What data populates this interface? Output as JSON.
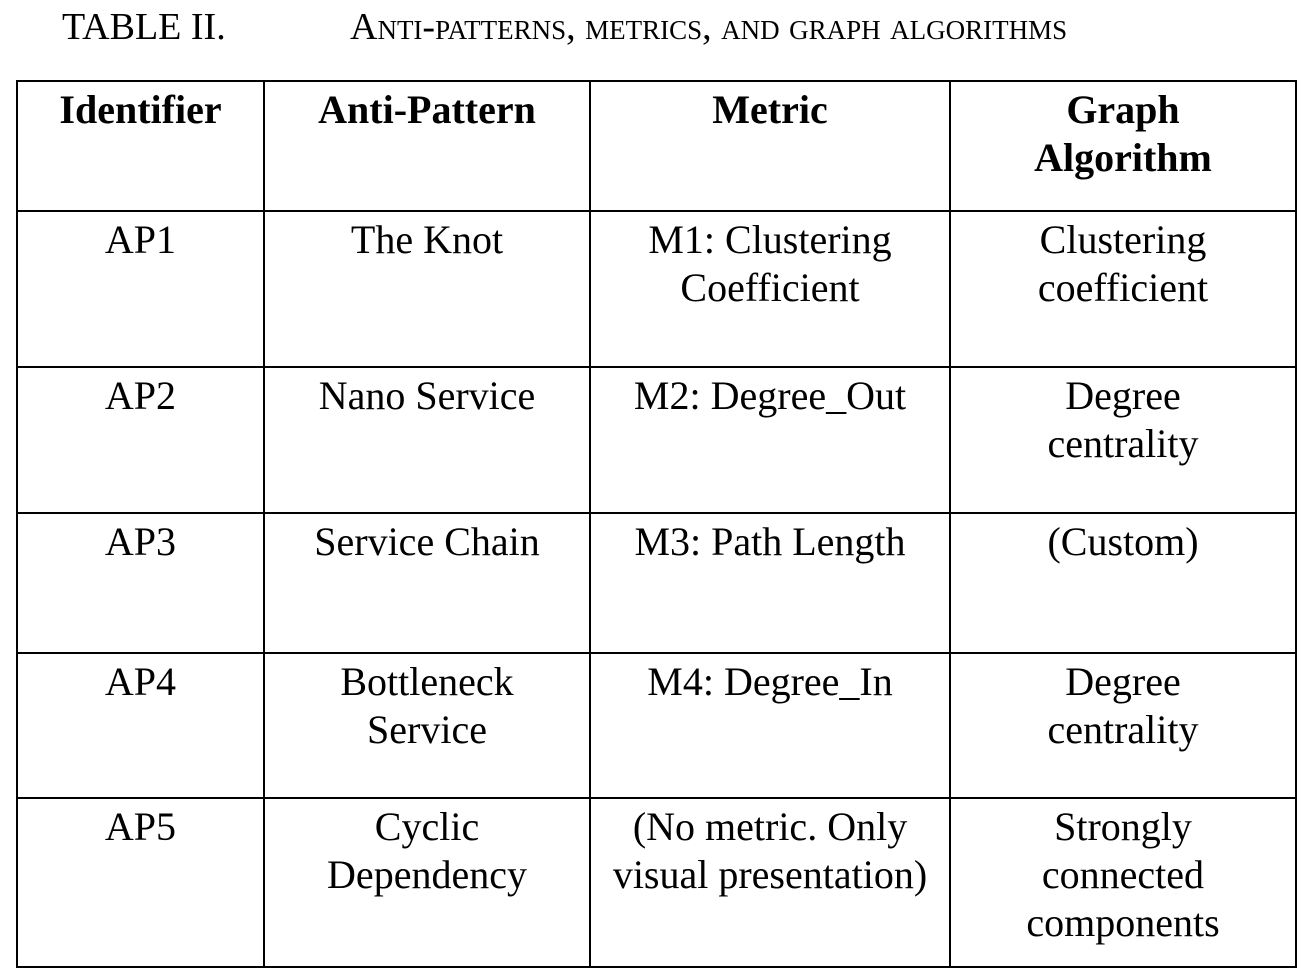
{
  "caption": {
    "number": "TABLE II.",
    "title": "Anti-patterns, metrics, and graph algorithms"
  },
  "table": {
    "headers": [
      "Identifier",
      "Anti-Pattern",
      "Metric",
      "Graph Algorithm"
    ],
    "rows": [
      [
        "AP1",
        "The Knot",
        "M1: Clustering Coefficient",
        "Clustering coefficient"
      ],
      [
        "AP2",
        "Nano Service",
        "M2: Degree_Out",
        "Degree centrality"
      ],
      [
        "AP3",
        "Service Chain",
        "M3: Path Length",
        "(Custom)"
      ],
      [
        "AP4",
        "Bottleneck Service",
        "M4: Degree_In",
        "Degree centrality"
      ],
      [
        "AP5",
        "Cyclic Dependency",
        "(No metric. Only visual presentation)",
        "Strongly connected components"
      ]
    ]
  }
}
